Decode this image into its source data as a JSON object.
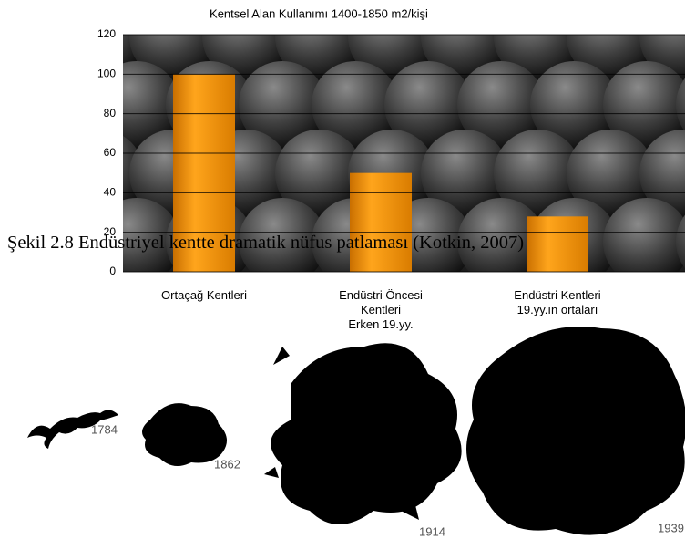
{
  "chart_data": {
    "type": "bar",
    "title": "Kentsel Alan Kullanımı 1400-1850 m2/kişi",
    "categories": [
      "Ortaçağ Kentleri",
      "Endüstri Öncesi\nKentleri\nErken 19.yy.",
      "Endüstri Kentleri\n19.yy.ın ortaları"
    ],
    "values": [
      100,
      50,
      28
    ],
    "color": "#f59a00",
    "ylim": [
      0,
      120
    ],
    "yticks": [
      0,
      20,
      40,
      60,
      80,
      100,
      120
    ],
    "grid": true
  },
  "caption": "Şekil 2.8 Endüstriyel kentte dramatik nüfus patlaması (Kotkin, 2007)",
  "maps": {
    "years": [
      "1784",
      "1862",
      "1914",
      "1939"
    ]
  }
}
